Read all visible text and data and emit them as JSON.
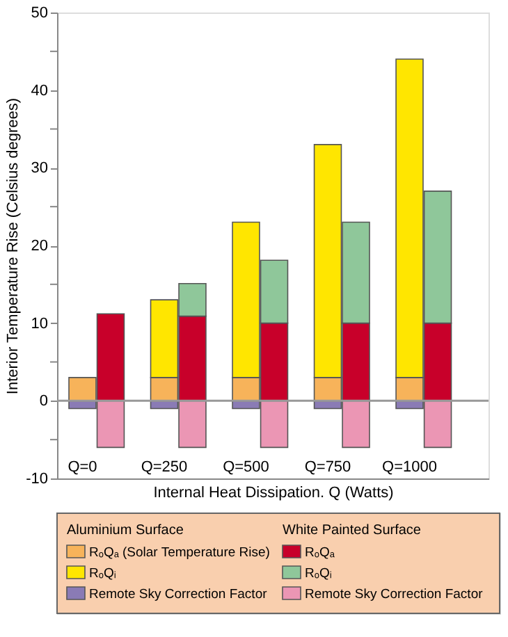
{
  "chart_data": {
    "type": "bar",
    "stacked": true,
    "xlabel": "Internal Heat Dissipation. Q (Watts)",
    "ylabel": "Interior Temperature Rise (Celsius degrees)",
    "categories": [
      "Q=0",
      null,
      "Q=250",
      null,
      "Q=500",
      null,
      "Q=750",
      null,
      "Q=1000",
      null
    ],
    "legend_title": [
      "Aluminium Surface",
      "White Painted Surface"
    ],
    "series": [
      {
        "name": "RₒQₐ (Solar Temperature Rise)",
        "color": "#f7b35a",
        "values": [
          3,
          null,
          3,
          null,
          3,
          null,
          3,
          null,
          3,
          null
        ]
      },
      {
        "name": "RₒQᵢ",
        "color": "#ffe600",
        "values": [
          null,
          null,
          10,
          null,
          20,
          null,
          30,
          null,
          41,
          null
        ]
      },
      {
        "name": "Remote Sky Correction Factor",
        "color": "#8a7bb5",
        "values": [
          -1,
          null,
          -1,
          null,
          -1,
          null,
          -1,
          null,
          -1,
          null
        ]
      },
      {
        "name": "RₒQₐ",
        "color": "#c8002a",
        "values": [
          null,
          11.2,
          null,
          10.9,
          null,
          10,
          null,
          10,
          null,
          10
        ]
      },
      {
        "name": "RₒQᵢ",
        "color": "#8fc79a",
        "values": [
          null,
          null,
          null,
          4.2,
          null,
          8.1,
          null,
          13,
          null,
          17
        ]
      },
      {
        "name": "Remote Sky Correction Factor",
        "color": "#eb96b4",
        "values": [
          null,
          -6,
          null,
          -6,
          null,
          -6,
          null,
          -6,
          null,
          -6
        ]
      }
    ],
    "ylim": [
      -10,
      50
    ],
    "yticks": [
      -10,
      {
        "value": -5,
        "label": null
      },
      0,
      {
        "value": 5,
        "label": null
      },
      10,
      {
        "value": 15,
        "label": null
      },
      20,
      {
        "value": 25,
        "label": null
      },
      30,
      {
        "value": 35,
        "label": null
      },
      40,
      {
        "value": 45,
        "label": null
      },
      50
    ],
    "ref_lines": [
      {
        "axis": "y",
        "value": 0,
        "color": "#999999"
      }
    ],
    "grid": false,
    "legend": "bottom"
  }
}
